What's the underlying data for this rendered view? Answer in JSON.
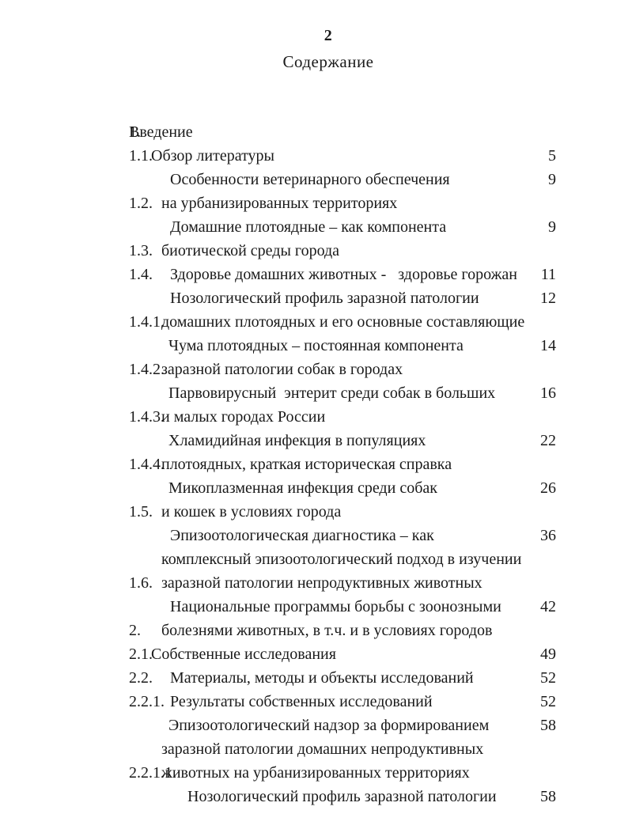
{
  "page": {
    "number": "2",
    "title": "Содержание",
    "text_color": "#1a1a1a",
    "background": "#ffffff"
  },
  "toc": {
    "lines": [
      {
        "num": "",
        "text": "Введение",
        "page": "5",
        "level": "intro"
      },
      {
        "num": "1.",
        "text": "Обзор литературы",
        "page": "9",
        "level": "l1"
      },
      {
        "num": "1.1.",
        "text": "Особенности ветеринарного обеспечения",
        "page": "",
        "level": "l2"
      },
      {
        "num": "",
        "text": "на урбанизированных территориях",
        "page": "9",
        "level": "cont"
      },
      {
        "num": "1.2.",
        "text": "Домашние плотоядные – как компонента",
        "page": "",
        "level": "l2"
      },
      {
        "num": "",
        "text": "биотической среды города",
        "page": "11",
        "level": "cont"
      },
      {
        "num": "1.3.",
        "text": "Здоровье домашних животных -   здоровье горожан",
        "page": "12",
        "level": "l2"
      },
      {
        "num": "1.4.",
        "text": "Нозологический профиль заразной патологии",
        "page": "",
        "level": "l2"
      },
      {
        "num": "",
        "text": "домашних плотоядных и его основные составляющие",
        "page": "14",
        "level": "cont"
      },
      {
        "num": "1.4.1.",
        "text": "Чума плотоядных – постоянная компонента",
        "page": "",
        "level": "l3"
      },
      {
        "num": "",
        "text": "заразной патологии собак в городах",
        "page": "16",
        "level": "cont"
      },
      {
        "num": "1.4.2.",
        "text": "Парвовирусный  энтерит среди собак в больших",
        "page": "",
        "level": "l3"
      },
      {
        "num": "",
        "text": "и малых городах России",
        "page": "22",
        "level": "cont"
      },
      {
        "num": "1.4.3.",
        "text": "Хламидийная инфекция в популяциях",
        "page": "",
        "level": "l3"
      },
      {
        "num": "",
        "text": "плотоядных, краткая историческая справка",
        "page": "26",
        "level": "cont"
      },
      {
        "num": "1.4.4.",
        "text": "Микоплазменная инфекция среди собак",
        "page": "",
        "level": "l3"
      },
      {
        "num": "",
        "text": "и кошек в условиях города",
        "page": "36",
        "level": "cont"
      },
      {
        "num": "1.5.",
        "text": "Эпизоотологическая диагностика – как",
        "page": "",
        "level": "l2"
      },
      {
        "num": "",
        "text": "комплексный эпизоотологический подход в изучении",
        "page": "",
        "level": "cont"
      },
      {
        "num": "",
        "text": "заразной патологии непродуктивных животных",
        "page": "42",
        "level": "cont"
      },
      {
        "num": "1.6.",
        "text": "Национальные программы борьбы с зоонозными",
        "page": "",
        "level": "l2"
      },
      {
        "num": "",
        "text": "болезнями животных, в т.ч. и в условиях городов",
        "page": "49",
        "level": "cont"
      },
      {
        "num": "2.",
        "text": "Собственные исследования",
        "page": "52",
        "level": "l1"
      },
      {
        "num": "2.1.",
        "text": "Материалы, методы и объекты исследований",
        "page": "52",
        "level": "l2"
      },
      {
        "num": "2.2.",
        "text": "Результаты собственных исследований",
        "page": "58",
        "level": "l2"
      },
      {
        "num": "2.2.1.",
        "text": "Эпизоотологический надзор за формированием",
        "page": "",
        "level": "l3"
      },
      {
        "num": "",
        "text": "заразной патологии домашних непродуктивных",
        "page": "",
        "level": "cont"
      },
      {
        "num": "",
        "text": "животных на урбанизированных территориях",
        "page": "58",
        "level": "cont"
      },
      {
        "num": "2.2.1.1.",
        "text": "Нозологический профиль заразной патологии",
        "page": "",
        "level": "l4"
      }
    ]
  }
}
